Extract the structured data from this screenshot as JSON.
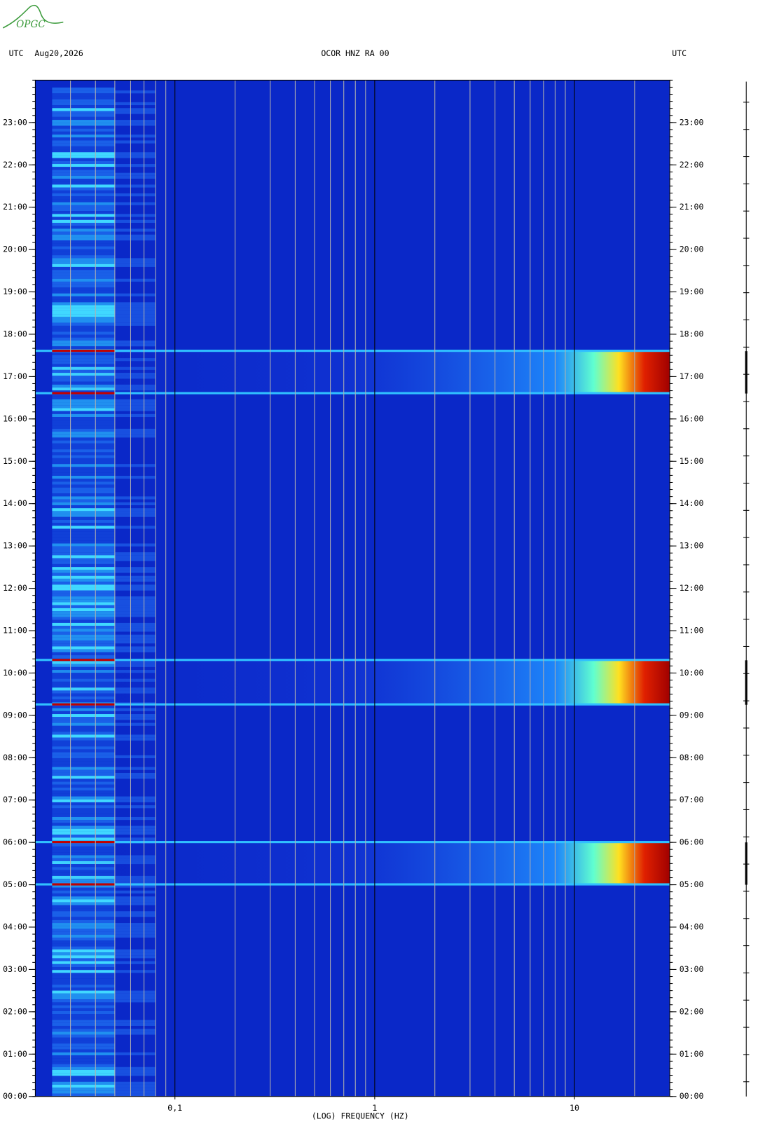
{
  "logo": "OPGC",
  "chart_data": {
    "type": "spectrogram",
    "title": "OCOR HNZ RA 00",
    "left_label": "UTC",
    "date": "Aug20,2026",
    "right_label": "UTC",
    "xlabel": "(LOG) FREQUENCY (HZ)",
    "xscale": "log",
    "xlim": [
      0.02,
      30
    ],
    "xticks": [
      {
        "value": 0.1,
        "label": "0,1"
      },
      1,
      10
    ],
    "minor_xticks": [
      0.03,
      0.04,
      0.05,
      0.06,
      0.07,
      0.08,
      0.09,
      0.2,
      0.3,
      0.4,
      0.5,
      0.6,
      0.7,
      0.8,
      0.9,
      2,
      3,
      4,
      5,
      6,
      7,
      8,
      9,
      20
    ],
    "ylim": [
      0,
      24
    ],
    "yticks": [
      {
        "value": 0,
        "label": "00:00"
      },
      {
        "value": 1,
        "label": "01:00"
      },
      {
        "value": 2,
        "label": "02:00"
      },
      {
        "value": 3,
        "label": "03:00"
      },
      {
        "value": 4,
        "label": "04:00"
      },
      {
        "value": 5,
        "label": "05:00"
      },
      {
        "value": 6,
        "label": "06:00"
      },
      {
        "value": 7,
        "label": "07:00"
      },
      {
        "value": 8,
        "label": "08:00"
      },
      {
        "value": 9,
        "label": "09:00"
      },
      {
        "value": 10,
        "label": "10:00"
      },
      {
        "value": 11,
        "label": "11:00"
      },
      {
        "value": 12,
        "label": "12:00"
      },
      {
        "value": 13,
        "label": "13:00"
      },
      {
        "value": 14,
        "label": "14:00"
      },
      {
        "value": 15,
        "label": "15:00"
      },
      {
        "value": 16,
        "label": "16:00"
      },
      {
        "value": 17,
        "label": "17:00"
      },
      {
        "value": 18,
        "label": "18:00"
      },
      {
        "value": 19,
        "label": "19:00"
      },
      {
        "value": 20,
        "label": "20:00"
      },
      {
        "value": 21,
        "label": "21:00"
      },
      {
        "value": 22,
        "label": "22:00"
      },
      {
        "value": 23,
        "label": "23:00"
      }
    ],
    "events": [
      {
        "start": 5.0,
        "end": 6.0
      },
      {
        "start": 9.25,
        "end": 10.3
      },
      {
        "start": 16.6,
        "end": 17.6
      }
    ]
  }
}
